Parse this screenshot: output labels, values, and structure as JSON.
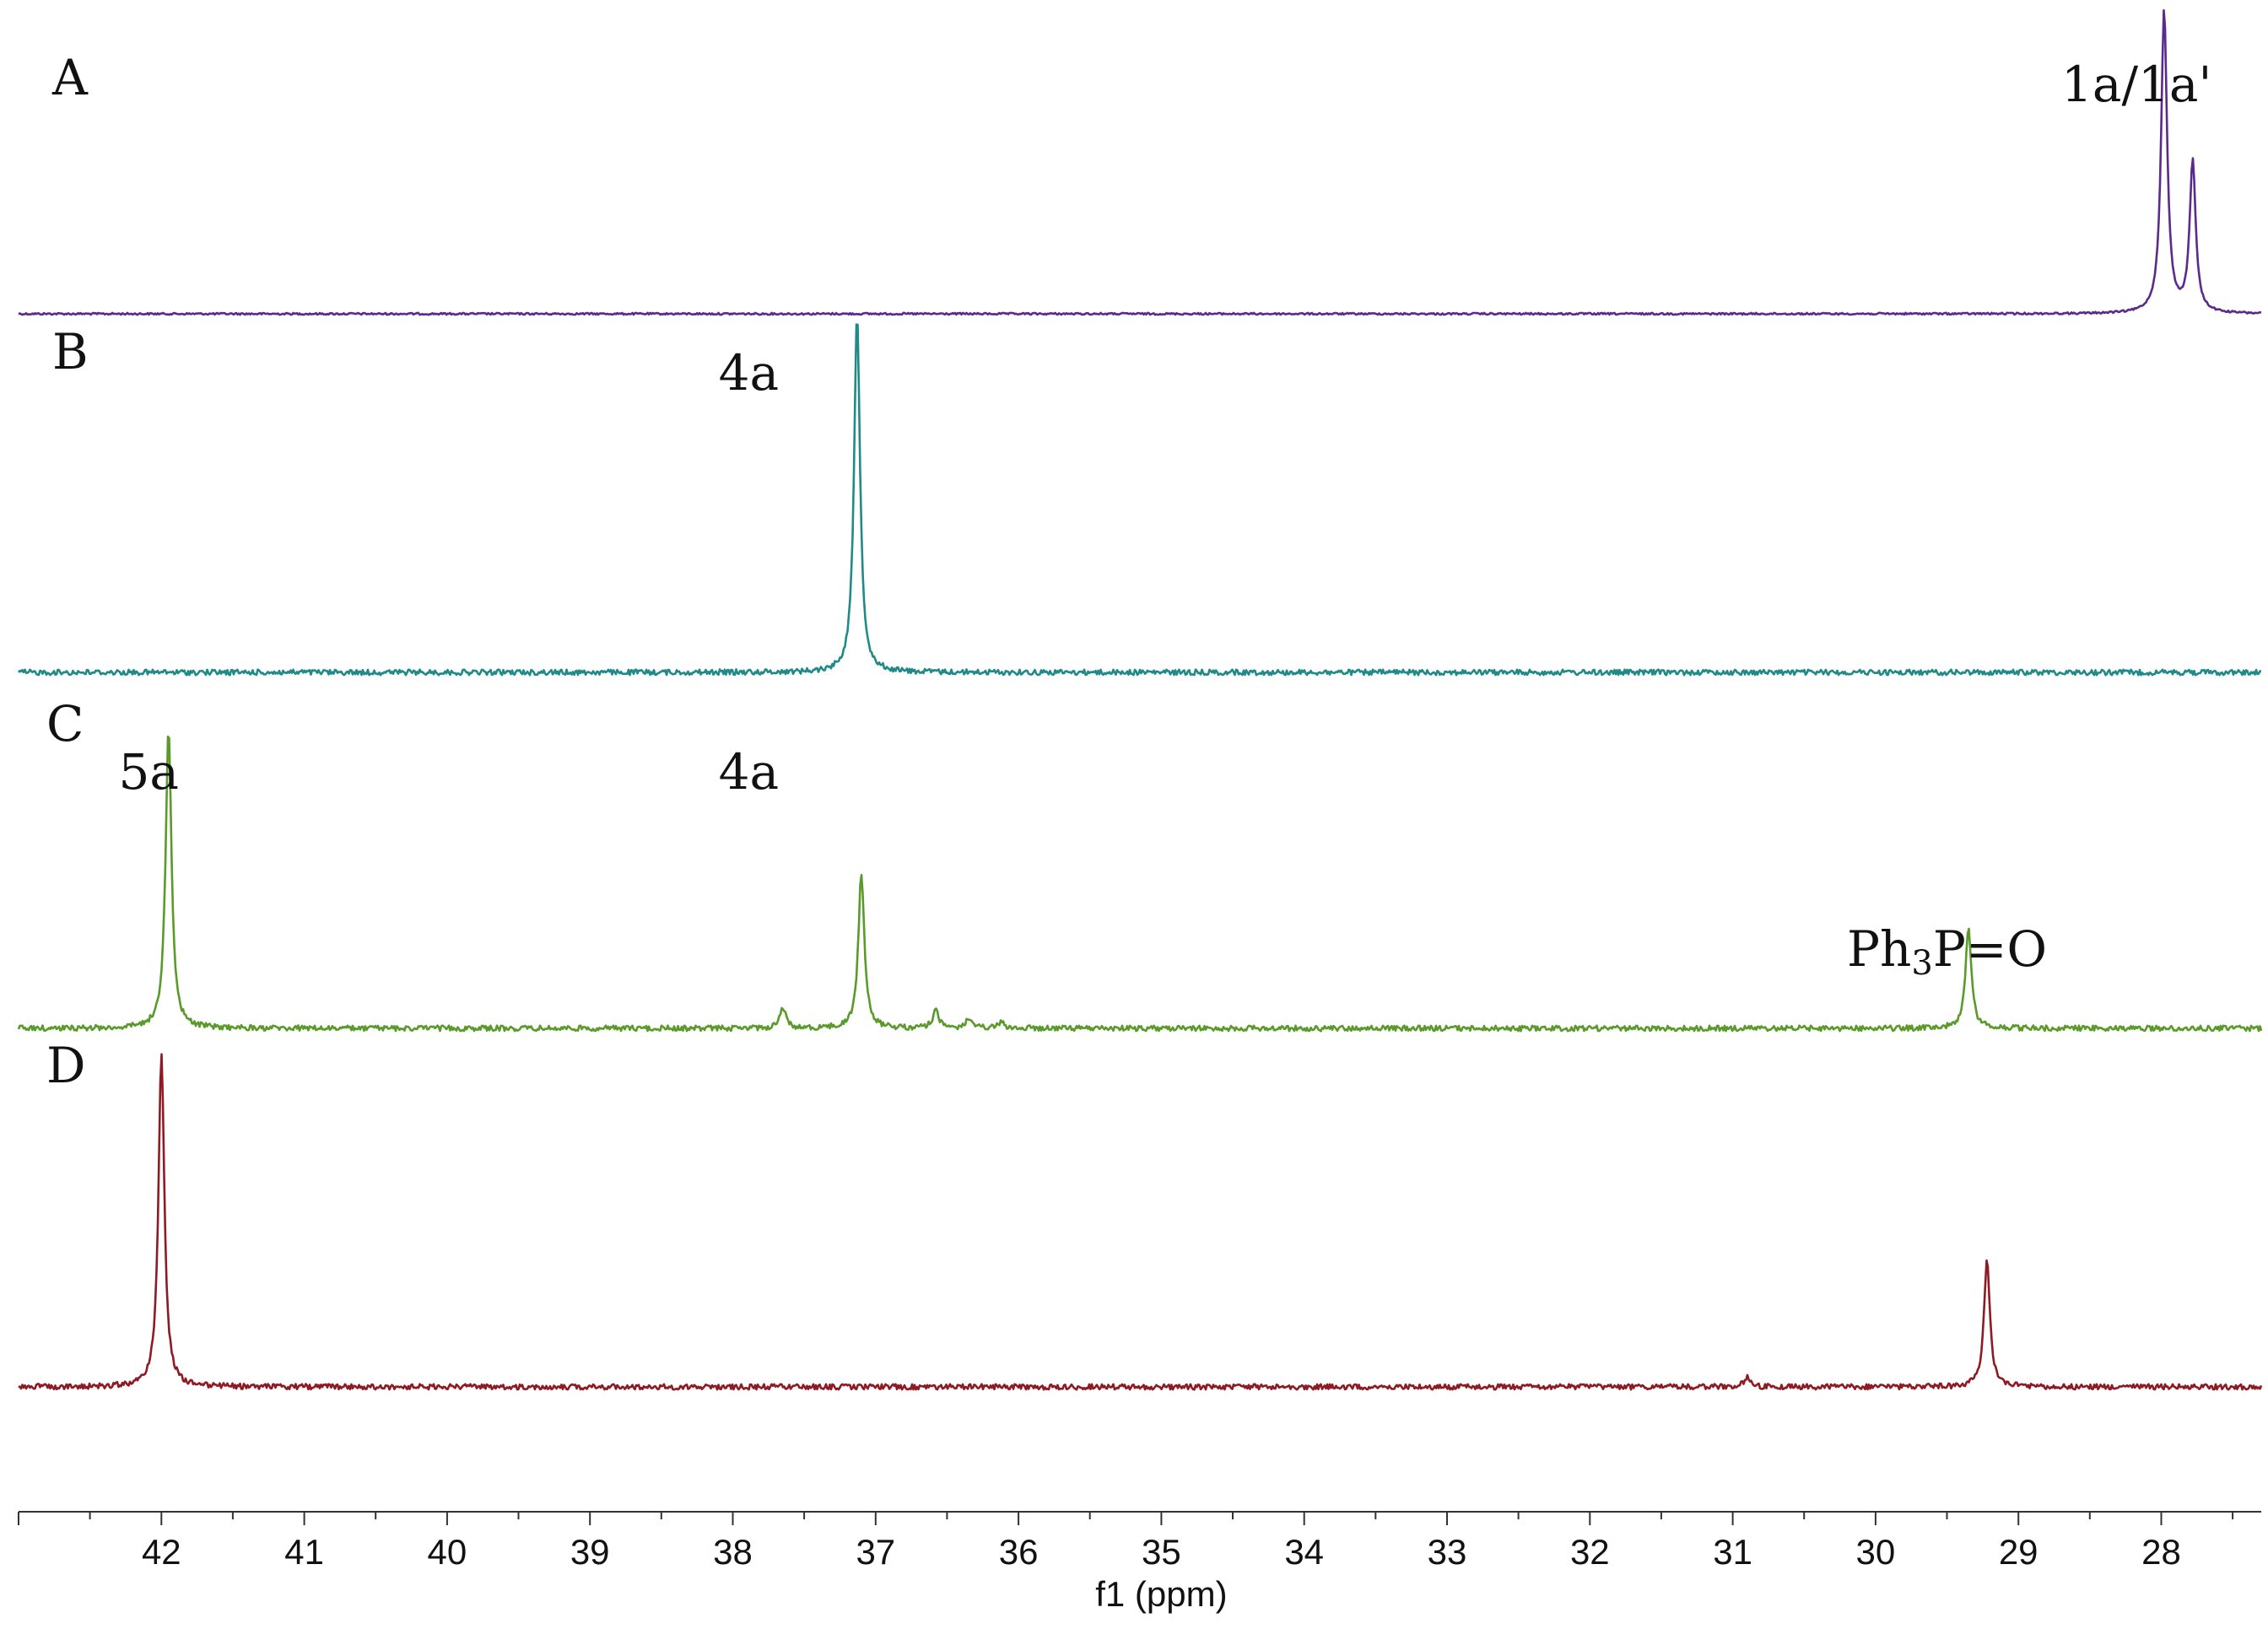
{
  "chart_data": {
    "type": "line",
    "xlabel": "f1 (ppm)",
    "x_axis": {
      "range_ppm": [
        43.0,
        27.3
      ],
      "reversed": true,
      "major_ticks": [
        42,
        41,
        40,
        39,
        38,
        37,
        36,
        35,
        34,
        33,
        32,
        31,
        30,
        29,
        28
      ],
      "minor_tick_step": 0.5
    },
    "grid": false,
    "legend": "none",
    "series": [
      {
        "name": "A",
        "color": "#5a2a8c",
        "peaks": [
          {
            "ppm": 27.98,
            "height": 1.0
          },
          {
            "ppm": 27.78,
            "height": 0.5
          }
        ],
        "labels": [
          {
            "text": "1a/1a'",
            "ppm": 28.7
          }
        ]
      },
      {
        "name": "B",
        "color": "#1f8a88",
        "peaks": [
          {
            "ppm": 37.13,
            "height": 1.0
          }
        ],
        "labels": [
          {
            "text": "4a",
            "ppm": 38.1
          }
        ]
      },
      {
        "name": "C",
        "color": "#5a9a2a",
        "peaks": [
          {
            "ppm": 41.95,
            "height": 1.0
          },
          {
            "ppm": 37.65,
            "height": 0.07
          },
          {
            "ppm": 37.1,
            "height": 0.52
          },
          {
            "ppm": 36.58,
            "height": 0.06
          },
          {
            "ppm": 36.35,
            "height": 0.03
          },
          {
            "ppm": 36.12,
            "height": 0.02
          },
          {
            "ppm": 29.35,
            "height": 0.33
          }
        ],
        "labels": [
          {
            "text": "5a",
            "ppm": 42.3
          },
          {
            "text": "4a",
            "ppm": 38.1
          },
          {
            "text_main": "Ph",
            "text_sub": "3",
            "text_rest": "P=O",
            "ppm": 30.2
          }
        ]
      },
      {
        "name": "D",
        "color": "#8e1a24",
        "peaks": [
          {
            "ppm": 42.0,
            "height": 1.0
          },
          {
            "ppm": 30.9,
            "height": 0.03
          },
          {
            "ppm": 29.22,
            "height": 0.38
          }
        ],
        "labels": []
      }
    ]
  }
}
